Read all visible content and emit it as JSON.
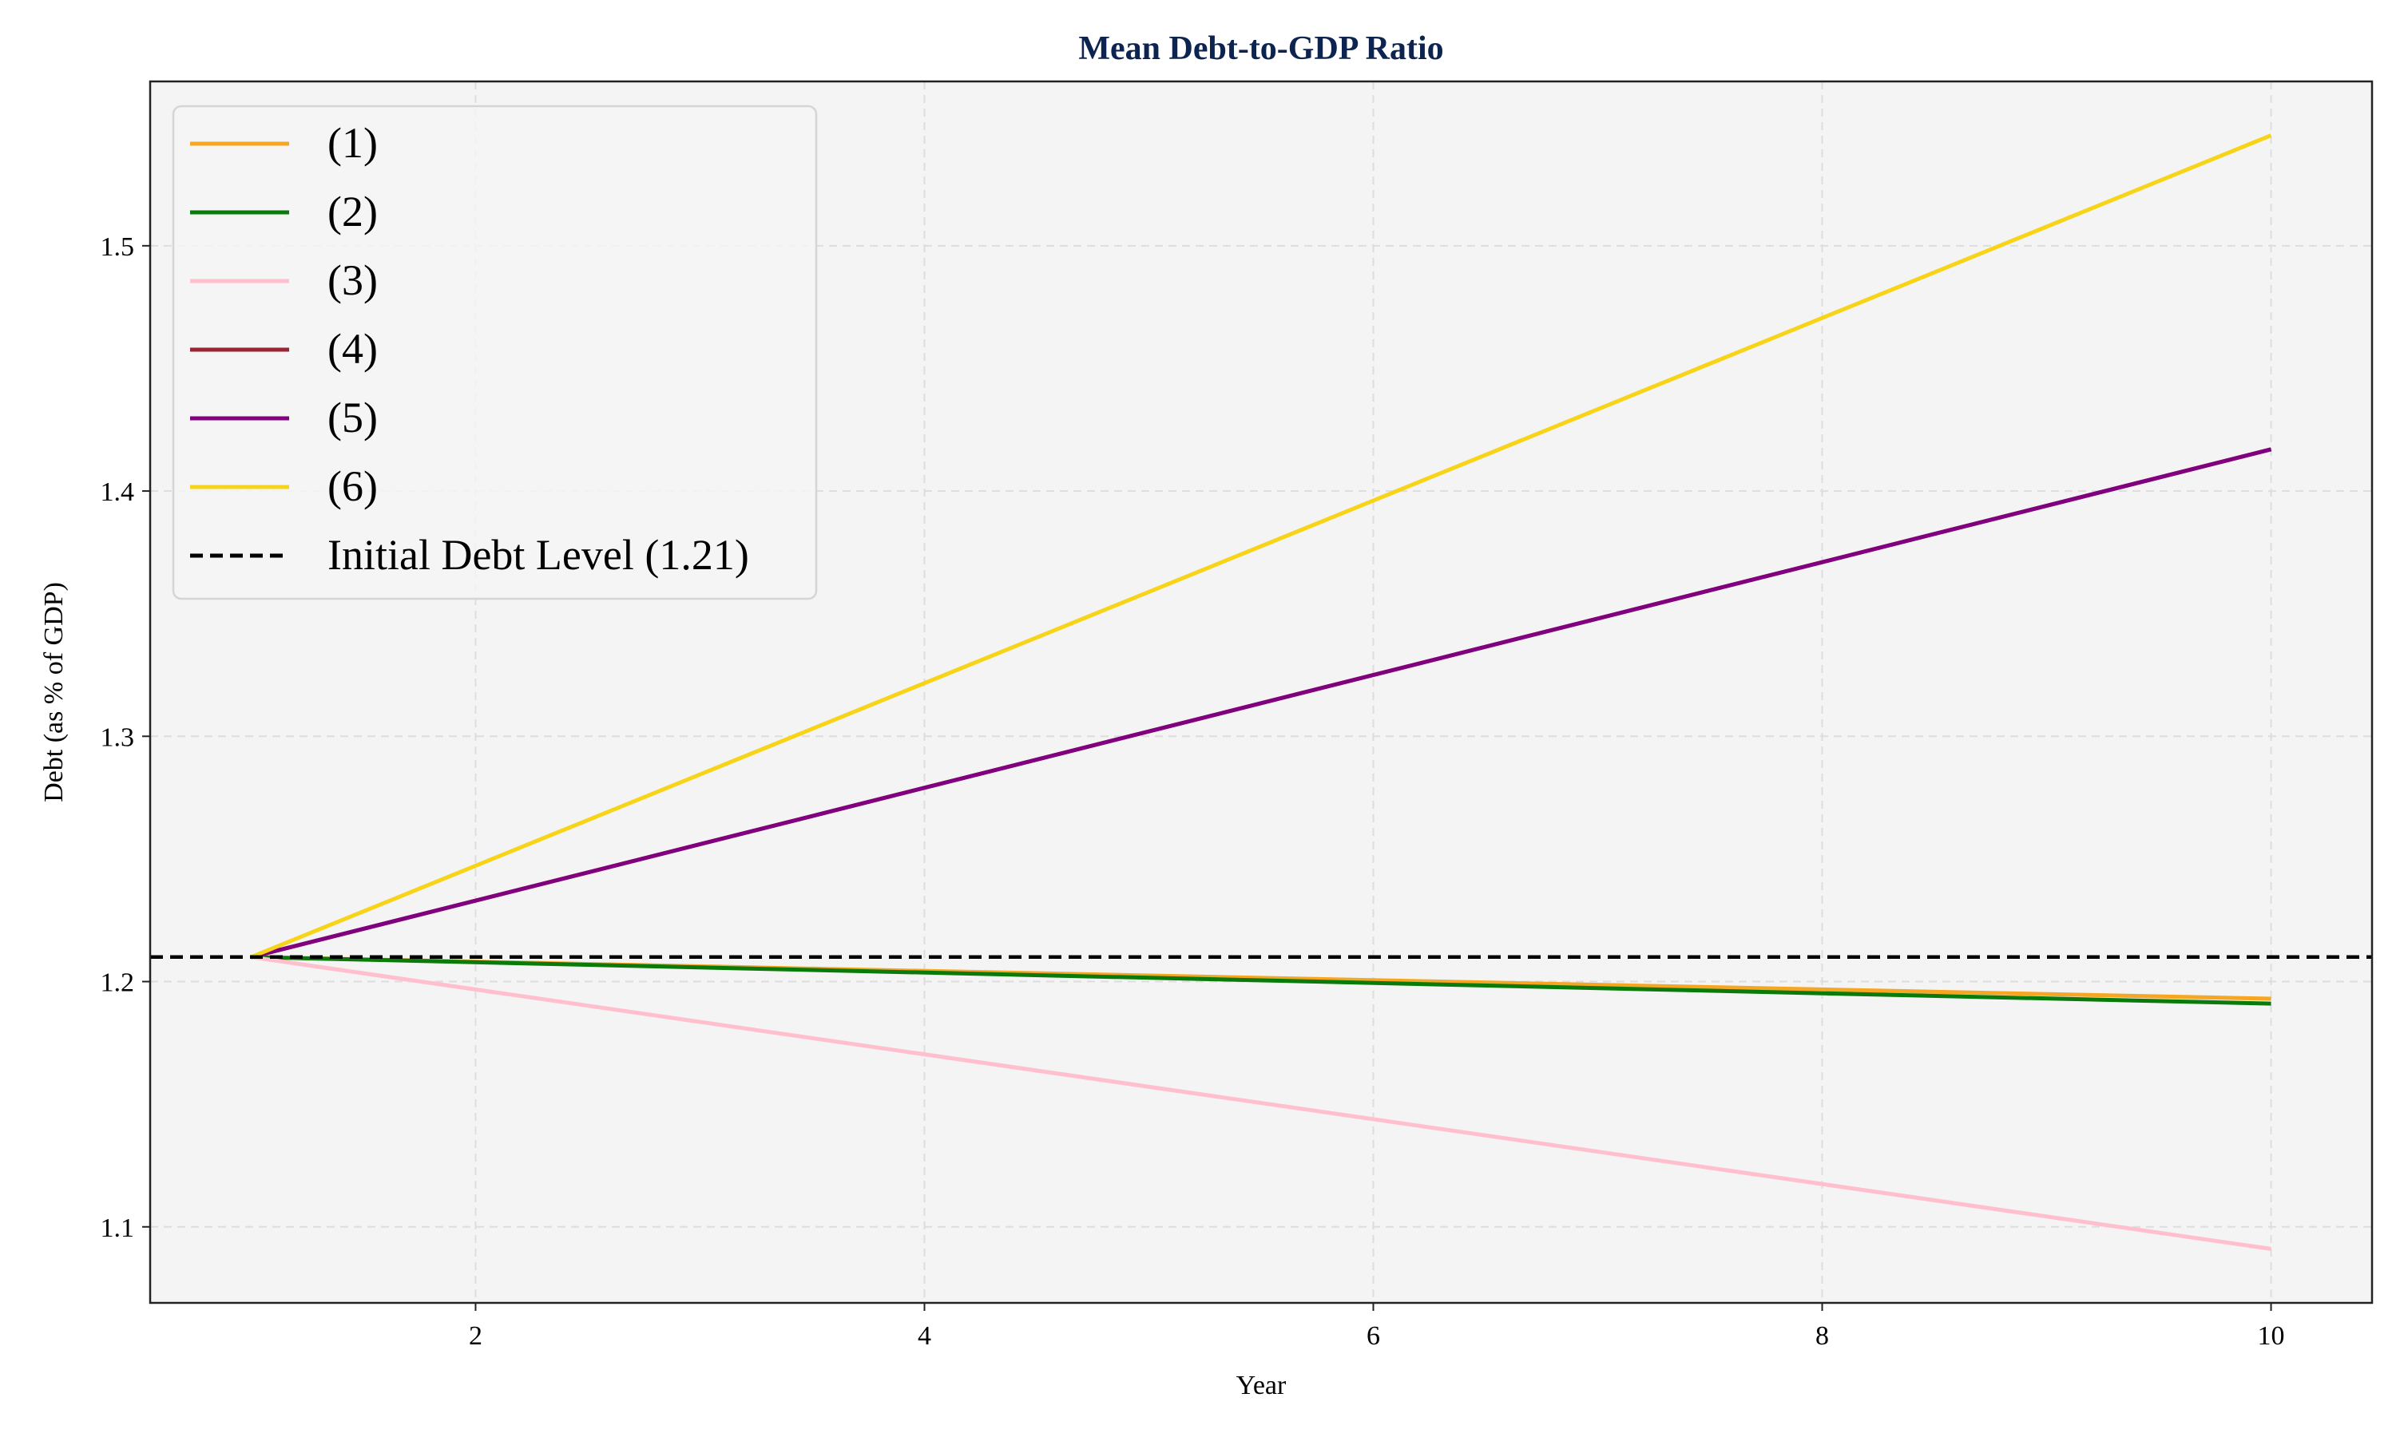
{
  "chart_data": {
    "type": "line",
    "title": "Mean Debt-to-GDP Ratio",
    "xlabel": "Year",
    "ylabel": "Debt (as % of GDP)",
    "xlim": [
      0.55,
      10.45
    ],
    "ylim": [
      1.069,
      1.567
    ],
    "xticks": [
      2,
      4,
      6,
      8,
      10
    ],
    "yticks": [
      1.1,
      1.2,
      1.3,
      1.4,
      1.5
    ],
    "xtick_labels": [
      "2",
      "4",
      "6",
      "8",
      "10"
    ],
    "ytick_labels": [
      "1.1",
      "1.2",
      "1.3",
      "1.4",
      "1.5"
    ],
    "grid": true,
    "grid_style": "dashed",
    "legend_position": "top-left",
    "background_color": "#f4f4f4",
    "title_color": "#0d2350",
    "x": [
      1,
      10
    ],
    "series": [
      {
        "name": "(1)",
        "color": "#f5a623",
        "values": [
          1.21,
          1.193
        ]
      },
      {
        "name": "(2)",
        "color": "#0a7a0a",
        "values": [
          1.21,
          1.191
        ]
      },
      {
        "name": "(3)",
        "color": "#ffbfcc",
        "values": [
          1.21,
          1.091
        ]
      },
      {
        "name": "(4)",
        "color": "#9b2335",
        "values": [
          1.21,
          1.417
        ]
      },
      {
        "name": "(5)",
        "color": "#800080",
        "values": [
          1.21,
          1.417
        ]
      },
      {
        "name": "(6)",
        "color": "#f7d417",
        "values": [
          1.21,
          1.545
        ]
      }
    ],
    "reference_line": {
      "name": "Initial Debt Level (1.21)",
      "value": 1.21,
      "color": "#000000",
      "style": "dashed"
    }
  }
}
